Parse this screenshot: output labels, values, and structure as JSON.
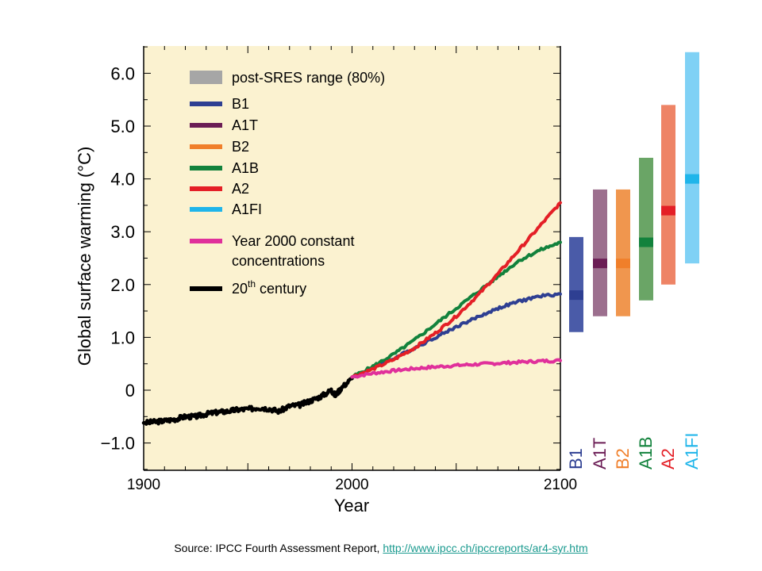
{
  "chart_data": {
    "type": "line",
    "ylabel": "Global surface warming (°C)",
    "xlabel": "Year",
    "xlim": [
      1900,
      2100
    ],
    "ylim": [
      -1.5,
      6.5
    ],
    "x_ticks": [
      "1900",
      "2000",
      "2100"
    ],
    "y_ticks": [
      "−1.0",
      "0",
      "1.0",
      "2.0",
      "3.0",
      "4.0",
      "5.0",
      "6.0"
    ],
    "y_tick_values": [
      -1,
      0,
      1,
      2,
      3,
      4,
      5,
      6
    ],
    "grid": false,
    "legend_position": "top-left",
    "legend": [
      {
        "label": "post-SRES range (80%)",
        "color": "#a6a6a6",
        "swatch": "box"
      },
      {
        "label": "B1",
        "color": "#2e3f92"
      },
      {
        "label": "A1T",
        "color": "#6b1d55"
      },
      {
        "label": "B2",
        "color": "#f07f2a"
      },
      {
        "label": "A1B",
        "color": "#12823c"
      },
      {
        "label": "A2",
        "color": "#e41f26"
      },
      {
        "label": "A1FI",
        "color": "#1fb5ea"
      },
      {
        "label": "Year 2000 constant",
        "label2": "concentrations",
        "color": "#e0309b"
      },
      {
        "label": "20",
        "sup": "th",
        "label_rest": " century",
        "color": "#000000"
      }
    ],
    "series": [
      {
        "name": "20th century",
        "color": "#000000",
        "x": [
          1900,
          1905,
          1910,
          1915,
          1920,
          1925,
          1930,
          1935,
          1940,
          1945,
          1950,
          1955,
          1960,
          1965,
          1970,
          1975,
          1980,
          1985,
          1990,
          1992,
          1995,
          2000
        ],
        "y": [
          -0.62,
          -0.6,
          -0.58,
          -0.55,
          -0.5,
          -0.5,
          -0.45,
          -0.42,
          -0.4,
          -0.37,
          -0.36,
          -0.33,
          -0.35,
          -0.4,
          -0.3,
          -0.28,
          -0.2,
          -0.12,
          0.0,
          -0.1,
          0.05,
          0.22
        ]
      },
      {
        "name": "B1",
        "color": "#2e3f92",
        "x": [
          2000,
          2010,
          2020,
          2030,
          2040,
          2050,
          2060,
          2070,
          2080,
          2090,
          2100
        ],
        "y": [
          0.25,
          0.42,
          0.6,
          0.8,
          1.0,
          1.2,
          1.38,
          1.55,
          1.68,
          1.78,
          1.82
        ]
      },
      {
        "name": "A1B",
        "color": "#12823c",
        "x": [
          2000,
          2010,
          2020,
          2030,
          2040,
          2050,
          2060,
          2070,
          2080,
          2090,
          2100
        ],
        "y": [
          0.25,
          0.45,
          0.68,
          0.95,
          1.25,
          1.55,
          1.85,
          2.15,
          2.45,
          2.65,
          2.8
        ]
      },
      {
        "name": "A2",
        "color": "#e41f26",
        "x": [
          2000,
          2010,
          2020,
          2030,
          2040,
          2050,
          2060,
          2070,
          2080,
          2090,
          2100
        ],
        "y": [
          0.25,
          0.4,
          0.58,
          0.8,
          1.08,
          1.4,
          1.78,
          2.2,
          2.65,
          3.1,
          3.55
        ]
      },
      {
        "name": "Year 2000 constant concentrations",
        "color": "#e0309b",
        "x": [
          2000,
          2010,
          2020,
          2030,
          2040,
          2050,
          2060,
          2070,
          2080,
          2090,
          2100
        ],
        "y": [
          0.25,
          0.32,
          0.37,
          0.41,
          0.44,
          0.47,
          0.49,
          0.51,
          0.53,
          0.55,
          0.56
        ]
      }
    ],
    "ranges": [
      {
        "name": "B1",
        "low": 1.1,
        "high": 2.9,
        "best": 1.8,
        "color": "#4a5ba8"
      },
      {
        "name": "A1T",
        "low": 1.4,
        "high": 3.8,
        "best": 2.4,
        "color": "#9c6f8e"
      },
      {
        "name": "B2",
        "low": 1.4,
        "high": 3.8,
        "best": 2.4,
        "color": "#f0964e"
      },
      {
        "name": "A1B",
        "low": 1.7,
        "high": 4.4,
        "best": 2.8,
        "color": "#6aa566"
      },
      {
        "name": "A2",
        "low": 2.0,
        "high": 5.4,
        "best": 3.4,
        "color": "#ee8466"
      },
      {
        "name": "A1FI",
        "low": 2.4,
        "high": 6.4,
        "best": 4.0,
        "color": "#7fd1f5"
      }
    ],
    "range_label_colors": {
      "B1": "#2e3f92",
      "A1T": "#6b1d55",
      "B2": "#f07f2a",
      "A1B": "#12823c",
      "A2": "#e41f26",
      "A1FI": "#1fb5ea"
    },
    "best_mark_colors": {
      "B1": "#2e3f92",
      "A1T": "#6b1d55",
      "B2": "#f07f2a",
      "A1B": "#12823c",
      "A2": "#e41f26",
      "A1FI": "#1fb5ea"
    }
  },
  "source": {
    "prefix": "Source: IPCC Fourth Assessment Report, ",
    "link": "http://www.ipcc.ch/ipccreports/ar4-syr.htm"
  },
  "colors": {
    "plot_background": "#fbf2d0",
    "axis": "#000000"
  }
}
